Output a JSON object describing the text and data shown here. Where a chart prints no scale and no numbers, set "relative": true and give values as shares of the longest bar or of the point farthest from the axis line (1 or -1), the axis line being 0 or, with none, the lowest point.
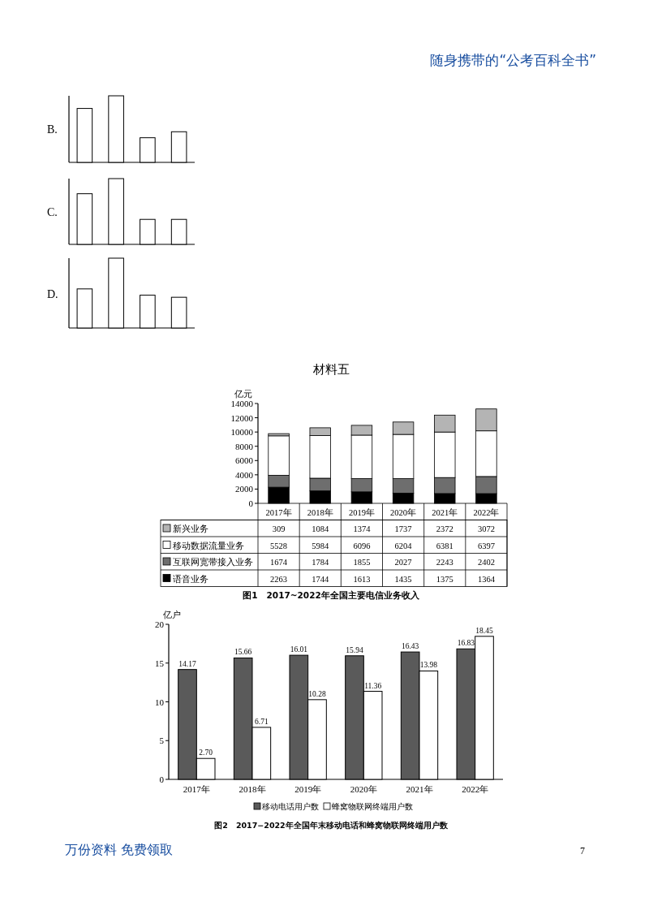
{
  "chart_data": [
    {
      "type": "bar",
      "title": "B.",
      "categories": [
        null,
        null,
        null,
        null
      ],
      "values": [
        0.81,
        1,
        0.37,
        0.46
      ],
      "color": "#ffffff",
      "relative": true,
      "annotations": [
        "随身携带的“公考百科全书”"
      ]
    },
    {
      "type": "bar",
      "title": "C.",
      "categories": [
        null,
        null,
        null,
        null
      ],
      "values": [
        0.77,
        1,
        0.38,
        0.38
      ],
      "color": "#ffffff",
      "relative": true
    },
    {
      "type": "bar",
      "title": "D.",
      "categories": [
        null,
        null,
        null,
        null
      ],
      "values": [
        0.56,
        1,
        0.47,
        0.44
      ],
      "color": "#ffffff",
      "relative": true
    },
    {
      "type": "bar",
      "title": "材料五",
      "ylabel": "亿元",
      "stacked": true,
      "data_labels": true,
      "legend": "bottom",
      "ylim": [
        0,
        14000
      ],
      "yticks": [
        0,
        2000,
        4000,
        6000,
        8000,
        10000,
        12000,
        14000
      ],
      "categories": [
        "2017年",
        "2018年",
        "2019年",
        "2020年",
        "2021年",
        "2022年"
      ],
      "series": [
        {
          "name": "语音业务",
          "color": "#000000",
          "values": [
            2263,
            1744,
            1613,
            1435,
            1375,
            1364
          ]
        },
        {
          "name": "互联网宽带接入业务",
          "color": "#6e6e6e",
          "values": [
            1674,
            1784,
            1855,
            2027,
            2243,
            2402
          ]
        },
        {
          "name": "移动数据流量业务",
          "color": "#ffffff",
          "values": [
            5528,
            5984,
            6096,
            6204,
            6381,
            6397
          ]
        },
        {
          "name": "新兴业务",
          "color": "#b4b4b4",
          "values": [
            309,
            1084,
            1374,
            1737,
            2372,
            3072
          ]
        }
      ],
      "annotations": [
        "图1　2017~2022年全国主要电信业务收入"
      ]
    },
    {
      "type": "bar",
      "ylabel": "亿户",
      "legend": "bottom",
      "ylim": [
        0,
        20
      ],
      "yticks": [
        0,
        5,
        10,
        15,
        20
      ],
      "categories": [
        "2017年",
        "2018年",
        "2019年",
        "2020年",
        "2021年",
        "2022年"
      ],
      "series": [
        {
          "name": "移动电话用户数",
          "color": "#5a5a5a",
          "values": [
            14.17,
            15.66,
            16.01,
            15.94,
            16.43,
            16.83
          ],
          "value_labels": [
            "14.17",
            "15.66",
            "16.01",
            "15.94",
            "16.43",
            "16.83"
          ]
        },
        {
          "name": "蜂窝物联网终端用户数",
          "color": "#ffffff",
          "values": [
            2.7,
            6.71,
            10.28,
            11.36,
            13.98,
            18.45
          ],
          "value_labels": [
            "2.70",
            "6.71",
            "10.28",
            "11.36",
            "13.98",
            "18.45"
          ]
        }
      ],
      "annotations": [
        "图2　2017−2022年全国年末移动电话和蜂窝物联网终端用户数",
        "万份资料 免费领取",
        "7"
      ]
    }
  ]
}
